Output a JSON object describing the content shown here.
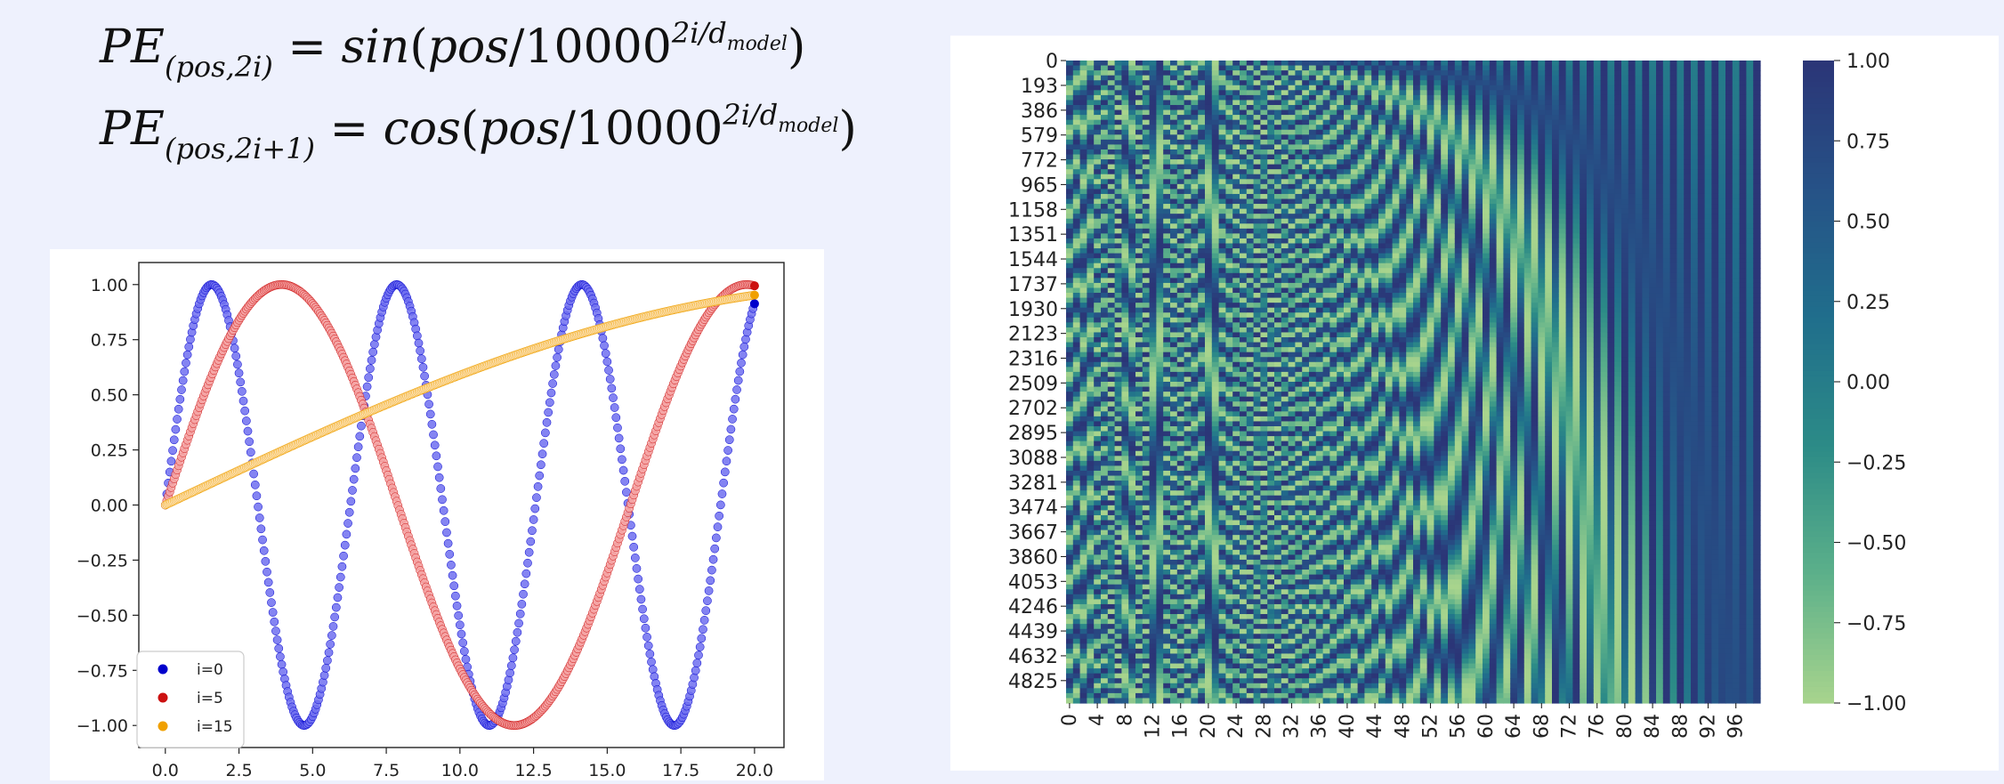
{
  "formulas": {
    "f1": {
      "lhs": "PE",
      "sub": "(pos,2i)",
      "eq": "=",
      "func": "sin",
      "arg": "pos",
      "base": "10000",
      "exp": "2i/d",
      "exp_sub": "model"
    },
    "f2": {
      "lhs": "PE",
      "sub": "(pos,2i+1)",
      "eq": "=",
      "func": "cos",
      "arg": "pos",
      "base": "10000",
      "exp": "2i/d",
      "exp_sub": "model"
    }
  },
  "chart_data": [
    {
      "type": "scatter",
      "title": "",
      "xlabel": "",
      "ylabel": "",
      "xlim": [
        -0.9,
        21.0
      ],
      "ylim": [
        -1.1,
        1.1
      ],
      "x_ticks": [
        0.0,
        2.5,
        5.0,
        7.5,
        10.0,
        12.5,
        15.0,
        17.5,
        20.0
      ],
      "x_tick_labels": [
        "0.0",
        "2.5",
        "5.0",
        "7.5",
        "10.0",
        "12.5",
        "15.0",
        "17.5",
        "20.0"
      ],
      "y_ticks": [
        1.0,
        0.75,
        0.5,
        0.25,
        0.0,
        -0.25,
        -0.5,
        -0.75,
        -1.0
      ],
      "y_tick_labels": [
        "1.00",
        "0.75",
        "0.50",
        "0.25",
        "0.00",
        "−0.25",
        "−0.50",
        "−0.75",
        "−1.00"
      ],
      "legend_position": "lower-left",
      "series": [
        {
          "name": "i=0",
          "color": "#0000cc",
          "fill": "#6f6ff0",
          "frequency": 1.0,
          "x_range": [
            0,
            20
          ]
        },
        {
          "name": "i=5",
          "color": "#cc1111",
          "fill": "#f5a3a3",
          "frequency": 0.398,
          "x_range": [
            0,
            20
          ]
        },
        {
          "name": "i=15",
          "color": "#f0a000",
          "fill": "#fde4ba",
          "frequency": 0.063,
          "x_range": [
            0,
            20
          ]
        }
      ]
    },
    {
      "type": "heatmap",
      "title": "",
      "colormap": "crest",
      "colormap_stops": [
        "#a8d48d",
        "#5cb08a",
        "#2c8b87",
        "#206e8c",
        "#265287",
        "#2b3577"
      ],
      "value_range": [
        -1.0,
        1.0
      ],
      "rows": 5000,
      "columns": 100,
      "y_tick_labels": [
        "0",
        "193",
        "386",
        "579",
        "772",
        "965",
        "1158",
        "1351",
        "1544",
        "1737",
        "1930",
        "2123",
        "2316",
        "2509",
        "2702",
        "2895",
        "3088",
        "3281",
        "3474",
        "3667",
        "3860",
        "4053",
        "4246",
        "4439",
        "4632",
        "4825"
      ],
      "x_tick_labels": [
        "0",
        "4",
        "8",
        "12",
        "16",
        "20",
        "24",
        "28",
        "32",
        "36",
        "40",
        "44",
        "48",
        "52",
        "56",
        "60",
        "64",
        "68",
        "72",
        "76",
        "80",
        "84",
        "88",
        "92",
        "96"
      ],
      "colorbar_ticks": [
        1.0,
        0.75,
        0.5,
        0.25,
        0.0,
        -0.25,
        -0.5,
        -0.75,
        -1.0
      ],
      "colorbar_tick_labels": [
        "1.00",
        "0.75",
        "0.50",
        "0.25",
        "0.00",
        "−0.25",
        "−0.50",
        "−0.75",
        "−1.00"
      ]
    }
  ]
}
